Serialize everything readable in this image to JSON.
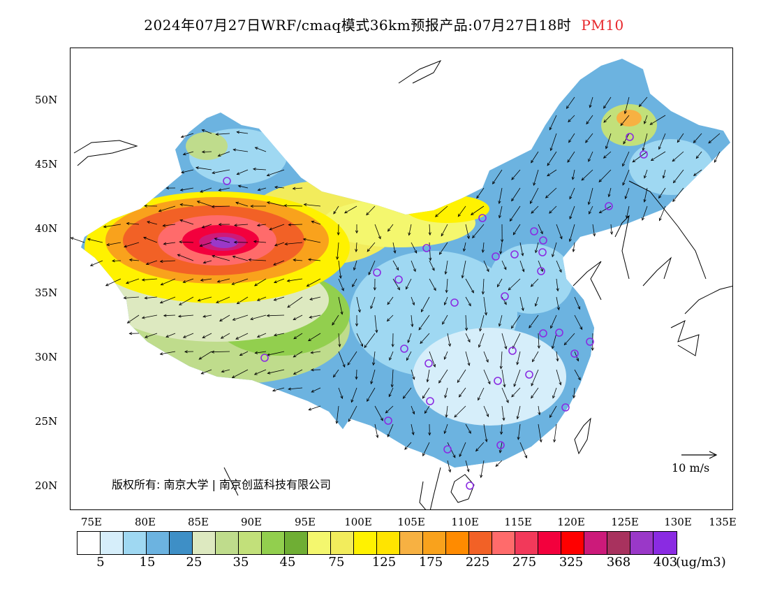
{
  "title": {
    "main": "2024年07月27日WRF/cmaq模式36km预报产品:07月27日18时",
    "pollutant": "PM10"
  },
  "map": {
    "lat_ticks": [
      "50N",
      "45N",
      "40N",
      "35N",
      "30N",
      "25N",
      "20N"
    ],
    "lon_ticks": [
      "75E",
      "80E",
      "85E",
      "90E",
      "95E",
      "100E",
      "105E",
      "110E",
      "115E",
      "120E",
      "125E",
      "130E",
      "135E"
    ],
    "copyright": "版权所有: 南京大学 | 南京创蓝科技有限公司",
    "wind_reference": "10 m/s"
  },
  "legend": {
    "colors": [
      "#ffffff",
      "#d6eefa",
      "#9fd8f2",
      "#6cb3e0",
      "#3e8fc6",
      "#dde9c0",
      "#bfdc8c",
      "#c2e07a",
      "#92cf4e",
      "#6fae34",
      "#f4f76e",
      "#f2ec5c",
      "#fff200",
      "#ffe400",
      "#f7b142",
      "#f9a21c",
      "#ff8b00",
      "#f26126",
      "#ff6b6b",
      "#f2395a",
      "#f3003d",
      "#ff0000",
      "#cc1a7a",
      "#a8325e",
      "#9a38c8",
      "#8a2be2"
    ],
    "labels": [
      "5",
      "15",
      "25",
      "35",
      "45",
      "75",
      "125",
      "175",
      "225",
      "275",
      "325",
      "368",
      "403"
    ],
    "unit": "(ug/m3)"
  }
}
